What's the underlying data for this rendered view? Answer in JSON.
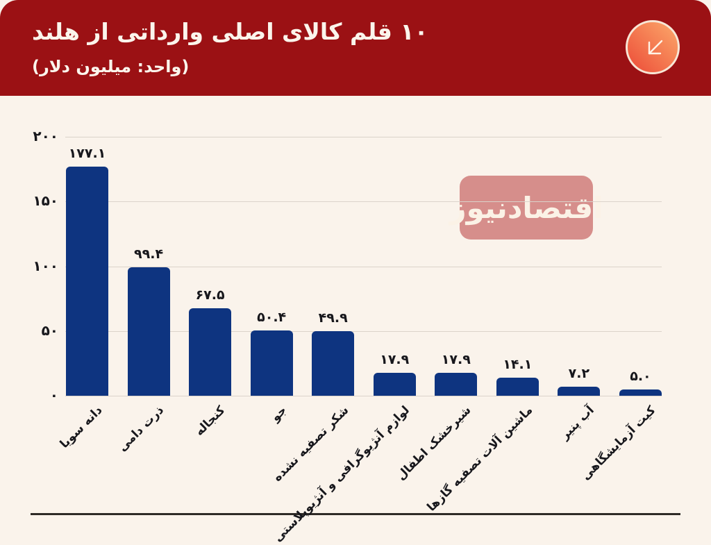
{
  "header": {
    "title": "۱۰ قلم کالای اصلی وارداتی از هلند",
    "subtitle": "(واحد: میلیون دلار)",
    "background_color": "#9b1114",
    "text_color": "#fbf5ec",
    "brand_icon": {
      "name": "arrow-down-left-icon",
      "gradient_start": "#ec4b37",
      "gradient_end": "#fca96b",
      "arrow_color": "#fff3e6"
    }
  },
  "watermark": {
    "label": "اقتصادنیوز",
    "background_color": "#d68e8b",
    "text_color": "#fbf2e6"
  },
  "chart_data": {
    "type": "bar",
    "title": "۱۰ قلم کالای اصلی وارداتی از هلند",
    "subtitle": "(واحد: میلیون دلار)",
    "unit": "میلیون دلار",
    "categories": [
      "دانه سویا",
      "ذرت دامی",
      "کنجاله",
      "جو",
      "شکر تصفیه نشده",
      "لوازم آنژیوگرافی و آنژیوپلاستی",
      "شیرخشک اطفال",
      "ماشین آلات تصفیه گازها",
      "آب پنیر",
      "کیت آزمایشگاهی"
    ],
    "values": [
      177.1,
      99.4,
      67.5,
      50.4,
      49.9,
      17.9,
      17.9,
      14.1,
      7.2,
      5.0
    ],
    "value_labels": [
      "۱۷۷.۱",
      "۹۹.۴",
      "۶۷.۵",
      "۵۰.۴",
      "۴۹.۹",
      "۱۷.۹",
      "۱۷.۹",
      "۱۴.۱",
      "۷.۲",
      "۵.۰"
    ],
    "y_axis": {
      "tick_values": [
        200,
        150,
        100,
        50,
        0
      ],
      "tick_labels": [
        "۲۰۰",
        "۱۵۰",
        "۱۰۰",
        "۵۰",
        "۰"
      ]
    },
    "ylim": [
      0,
      200
    ],
    "grid": true,
    "legend": false,
    "bar_color": "#0e3480",
    "background_color": "#faf3eb",
    "gridline_color": "#dbd3ca",
    "label_color": "#17171c"
  }
}
